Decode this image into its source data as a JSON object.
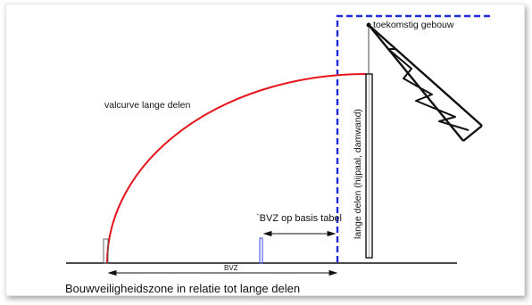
{
  "labels": {
    "future_building": "toekomstig gebouw",
    "fall_curve": "valcurve lange delen",
    "long_parts": "lange delen (hijpaal, damwand)",
    "bvz_table": "`BVZ op basis tabel",
    "bvz": "BVZ",
    "caption": "Bouwveiligheidszone in relatie tot lange delen"
  },
  "colors": {
    "curve": "#e8141c",
    "building_outline": "#1f2bd6",
    "ink": "#111111"
  }
}
